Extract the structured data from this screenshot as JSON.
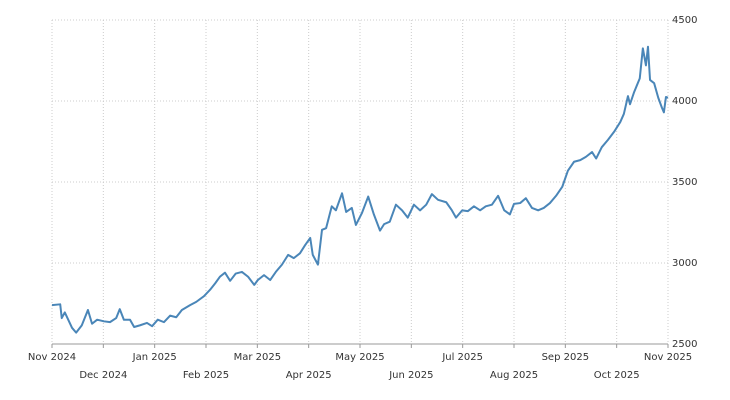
{
  "chart_data": {
    "type": "line",
    "x": [
      0,
      0.16,
      0.19,
      0.25,
      0.39,
      0.47,
      0.58,
      0.7,
      0.78,
      0.88,
      1.01,
      1.13,
      1.25,
      1.32,
      1.4,
      1.52,
      1.6,
      1.71,
      1.85,
      1.95,
      2.06,
      2.18,
      2.3,
      2.42,
      2.53,
      2.69,
      2.81,
      2.96,
      3.08,
      3.18,
      3.27,
      3.37,
      3.47,
      3.58,
      3.7,
      3.82,
      3.94,
      4.01,
      4.13,
      4.25,
      4.36,
      4.48,
      4.6,
      4.71,
      4.83,
      4.93,
      5.03,
      5.08,
      5.18,
      5.26,
      5.34,
      5.45,
      5.53,
      5.65,
      5.73,
      5.84,
      5.92,
      6.04,
      6.16,
      6.27,
      6.39,
      6.47,
      6.58,
      6.7,
      6.82,
      6.93,
      7.05,
      7.17,
      7.29,
      7.4,
      7.52,
      7.68,
      7.79,
      7.87,
      7.99,
      8.1,
      8.22,
      8.34,
      8.45,
      8.57,
      8.69,
      8.81,
      8.92,
      9.0,
      9.12,
      9.23,
      9.35,
      9.47,
      9.58,
      9.7,
      9.82,
      9.94,
      10.05,
      10.17,
      10.29,
      10.4,
      10.52,
      10.6,
      10.71,
      10.83,
      10.95,
      11.07,
      11.14,
      11.22,
      11.26,
      11.34,
      11.45,
      11.51,
      11.57,
      11.61,
      11.65,
      11.73,
      11.81,
      11.88,
      11.92,
      11.96,
      12
    ],
    "series": [
      {
        "color": "#4a86b8",
        "values": [
          2740,
          2745,
          2660,
          2695,
          2600,
          2570,
          2615,
          2710,
          2625,
          2650,
          2640,
          2635,
          2660,
          2715,
          2650,
          2650,
          2605,
          2615,
          2630,
          2610,
          2650,
          2635,
          2675,
          2665,
          2710,
          2740,
          2760,
          2795,
          2835,
          2875,
          2915,
          2940,
          2890,
          2935,
          2945,
          2915,
          2865,
          2895,
          2925,
          2895,
          2945,
          2990,
          3050,
          3030,
          3060,
          3110,
          3155,
          3050,
          2990,
          3205,
          3215,
          3350,
          3325,
          3430,
          3315,
          3340,
          3235,
          3310,
          3410,
          3300,
          3200,
          3240,
          3255,
          3360,
          3325,
          3280,
          3360,
          3325,
          3360,
          3425,
          3390,
          3375,
          3325,
          3280,
          3325,
          3320,
          3350,
          3325,
          3350,
          3360,
          3415,
          3325,
          3300,
          3365,
          3370,
          3400,
          3340,
          3325,
          3340,
          3370,
          3415,
          3470,
          3570,
          3625,
          3635,
          3655,
          3685,
          3645,
          3715,
          3760,
          3810,
          3870,
          3920,
          4030,
          3980,
          4055,
          4140,
          4325,
          4220,
          4335,
          4130,
          4110,
          4020,
          3960,
          3930,
          4025,
          4020
        ]
      }
    ],
    "xlim": [
      0,
      12
    ],
    "xticks": [
      {
        "value": 0,
        "label": "Nov 2024"
      },
      {
        "value": 1,
        "label": "Dec 2024"
      },
      {
        "value": 2,
        "label": "Jan 2025"
      },
      {
        "value": 3,
        "label": "Feb 2025"
      },
      {
        "value": 4,
        "label": "Mar 2025"
      },
      {
        "value": 5,
        "label": "Apr 2025"
      },
      {
        "value": 6,
        "label": "May 2025"
      },
      {
        "value": 7,
        "label": "Jun 2025"
      },
      {
        "value": 8,
        "label": "Jul 2025"
      },
      {
        "value": 9,
        "label": "Aug 2025"
      },
      {
        "value": 10,
        "label": "Sep 2025"
      },
      {
        "value": 11,
        "label": "Oct 2025"
      },
      {
        "value": 12,
        "label": "Nov 2025"
      }
    ],
    "ylim": [
      2500,
      4500
    ],
    "yticks": [
      2500,
      3000,
      3500,
      4000,
      4500
    ],
    "grid": true
  }
}
